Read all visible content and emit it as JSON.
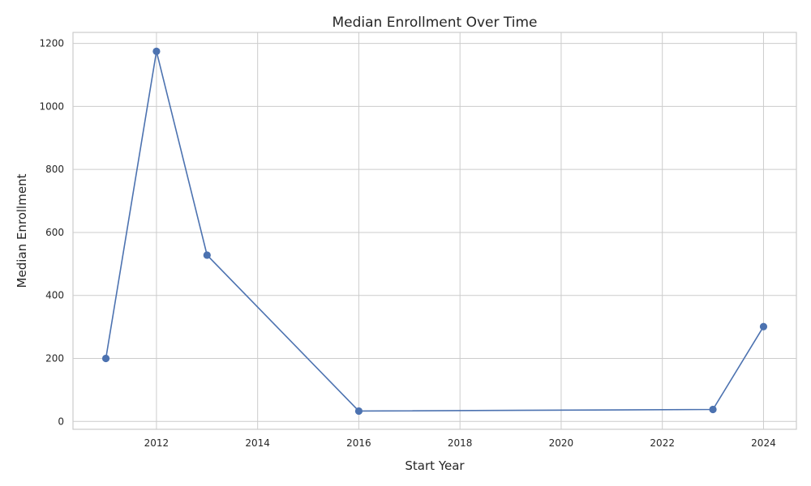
{
  "chart_data": {
    "type": "line",
    "title": "Median Enrollment Over Time",
    "xlabel": "Start Year",
    "ylabel": "Median Enrollment",
    "xlim": [
      2010.35,
      2024.65
    ],
    "ylim": [
      -25,
      1235
    ],
    "xticks": [
      2012,
      2014,
      2016,
      2018,
      2020,
      2022,
      2024
    ],
    "yticks": [
      0,
      200,
      400,
      600,
      800,
      1000,
      1200
    ],
    "grid": true,
    "legend": "none",
    "series": [
      {
        "color": "#4c72b0",
        "marker": "circle",
        "x": [
          2011,
          2012,
          2013,
          2016,
          2023,
          2024
        ],
        "y": [
          200,
          1175,
          528,
          33,
          38,
          301
        ]
      }
    ]
  }
}
